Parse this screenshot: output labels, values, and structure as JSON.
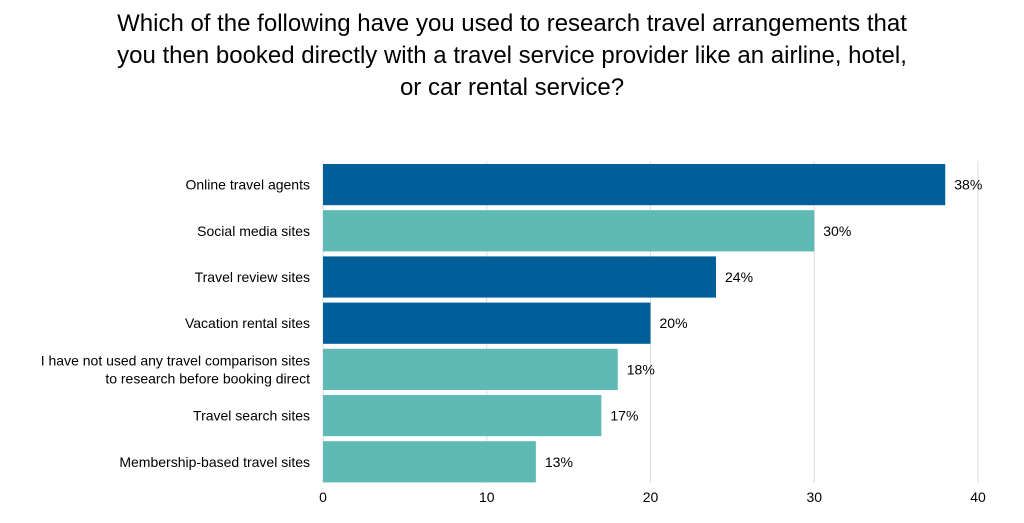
{
  "chart_data": {
    "type": "bar",
    "orientation": "horizontal",
    "title": "Which of the following have you used to research travel arrangements that you then booked directly with a travel service provider like an airline, hotel, or car rental service?",
    "title_lines": [
      "Which of the following have you used to research travel arrangements that",
      "you then booked directly with a travel service provider like an airline, hotel,",
      "or car rental service?"
    ],
    "categories": [
      [
        "Online travel agents"
      ],
      [
        "Social media sites"
      ],
      [
        "Travel review sites"
      ],
      [
        "Vacation rental sites"
      ],
      [
        "I have not used any travel comparison sites",
        "to research before booking direct"
      ],
      [
        "Travel search sites"
      ],
      [
        "Membership-based travel sites"
      ]
    ],
    "values": [
      38,
      30,
      24,
      20,
      18,
      17,
      13
    ],
    "value_labels": [
      "38%",
      "30%",
      "24%",
      "20%",
      "18%",
      "17%",
      "13%"
    ],
    "bar_colors": [
      "#005f99",
      "#5fb9b4",
      "#005f99",
      "#005f99",
      "#5fb9b4",
      "#5fb9b4",
      "#5fb9b4"
    ],
    "xlim": [
      0,
      40
    ],
    "xticks": [
      0,
      10,
      20,
      30,
      40
    ],
    "xlabel": "",
    "ylabel": "",
    "grid": true,
    "gridline_color": "#dddddd"
  }
}
